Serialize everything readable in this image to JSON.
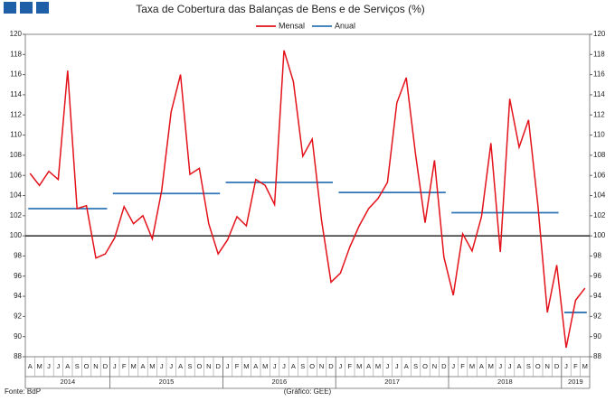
{
  "chart_data": {
    "type": "line",
    "title": "Taxa de Cobertura das Balanças de Bens e de Serviços (%)",
    "categories": [
      "A",
      "M",
      "J",
      "J",
      "A",
      "S",
      "O",
      "N",
      "D",
      "J",
      "F",
      "M",
      "A",
      "M",
      "J",
      "J",
      "A",
      "S",
      "O",
      "N",
      "D",
      "J",
      "F",
      "M",
      "A",
      "M",
      "J",
      "J",
      "A",
      "S",
      "O",
      "N",
      "D",
      "J",
      "F",
      "M",
      "A",
      "M",
      "J",
      "J",
      "A",
      "S",
      "O",
      "N",
      "D",
      "J",
      "F",
      "M",
      "A",
      "M",
      "J",
      "J",
      "A",
      "S",
      "O",
      "N",
      "D",
      "J",
      "F",
      "M"
    ],
    "years": [
      "2014",
      "2015",
      "2016",
      "2017",
      "2018",
      "2019"
    ],
    "year_spans": [
      9,
      12,
      12,
      12,
      12,
      3
    ],
    "series": [
      {
        "name": "Mensal",
        "color": "#e3121b",
        "values": [
          106.2,
          105.0,
          106.4,
          105.6,
          116.4,
          102.7,
          103.0,
          97.8,
          98.2,
          99.8,
          102.9,
          101.2,
          102.0,
          99.7,
          104.5,
          112.3,
          116.0,
          106.1,
          106.7,
          101.2,
          98.2,
          99.6,
          101.9,
          101.0,
          105.6,
          105.0,
          103.1,
          118.4,
          115.3,
          107.9,
          109.6,
          101.5,
          95.4,
          96.3,
          98.9,
          101.0,
          102.7,
          103.7,
          105.3,
          113.2,
          115.7,
          108.0,
          101.3,
          107.5,
          97.9,
          94.1,
          100.2,
          98.5,
          101.9,
          109.2,
          98.4,
          113.6,
          108.8,
          111.5,
          103.0,
          92.4,
          97.1,
          88.9,
          93.6,
          94.8
        ]
      }
    ],
    "annual_series": {
      "name": "Anual",
      "color": "#2e75b6",
      "values": [
        102.7,
        104.2,
        105.3,
        104.3,
        102.3,
        92.4
      ]
    },
    "reference_line": 100,
    "ylim": [
      88,
      120
    ],
    "yticks": [
      88,
      90,
      92,
      94,
      96,
      98,
      100,
      102,
      104,
      106,
      108,
      110,
      112,
      114,
      116,
      118,
      120
    ],
    "source": "Fonte: BdP",
    "credit": "(Gráfico: GEE)"
  }
}
